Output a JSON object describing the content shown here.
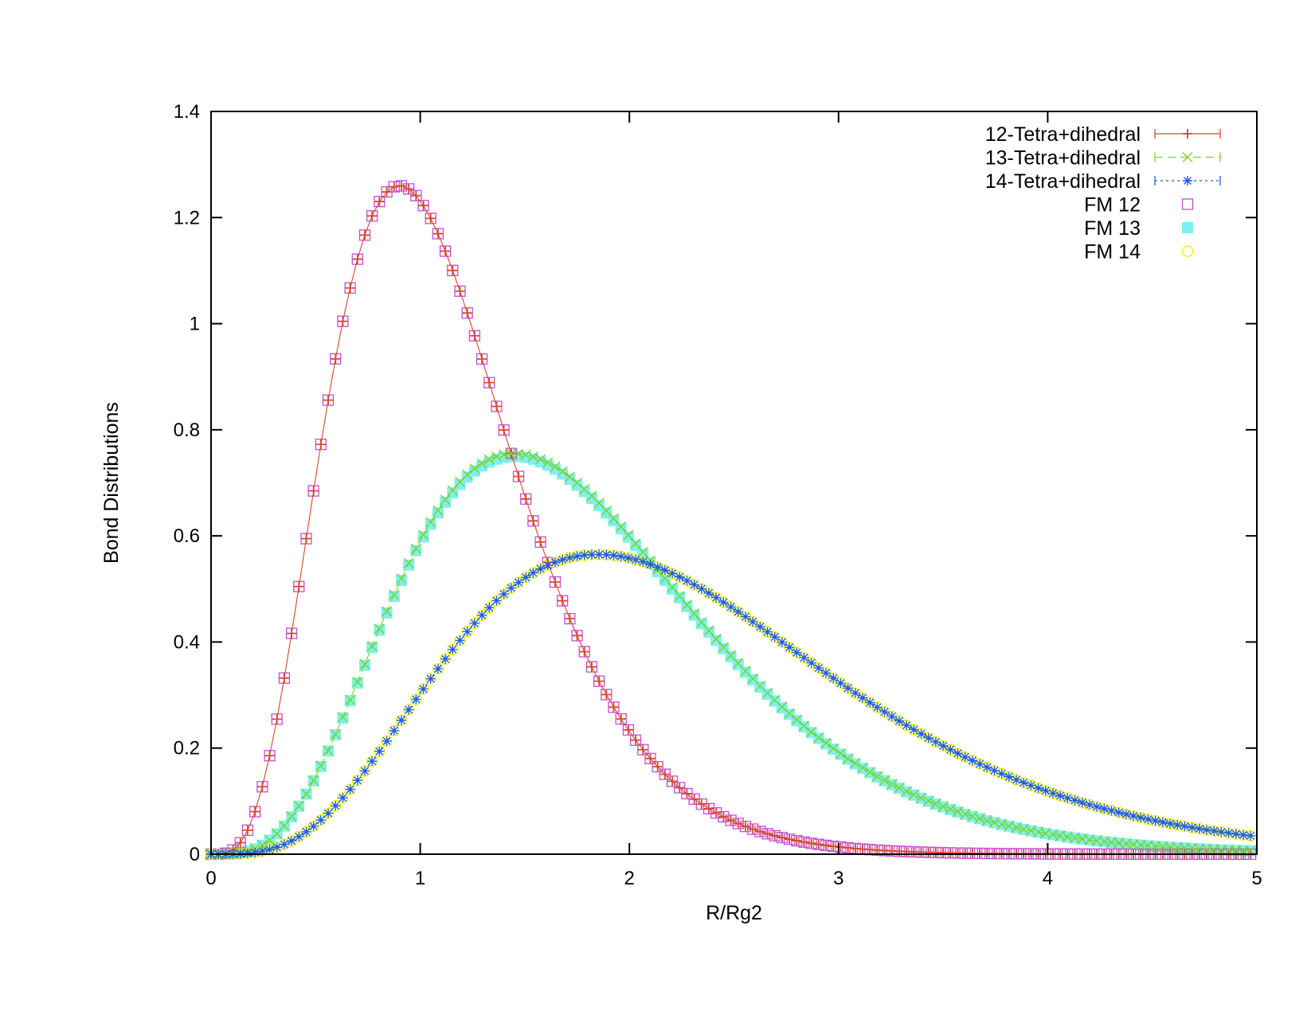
{
  "chart_data": {
    "type": "scatter",
    "title": "",
    "xlabel": "R/Rg2",
    "ylabel": "Bond Distributions",
    "xlim": [
      0,
      5
    ],
    "ylim": [
      0,
      1.4
    ],
    "xticks": [
      "0",
      "1",
      "2",
      "3",
      "4",
      "5"
    ],
    "yticks": [
      "0",
      "0.2",
      "0.4",
      "0.6",
      "0.8",
      "1",
      "1.2",
      "1.4"
    ],
    "grid": false,
    "legend_position": "top-right",
    "sample_step": 0.035,
    "series": [
      {
        "name": "12-Tetra+dihedral",
        "marker": "plus",
        "line": "solid",
        "color": "#d9452c",
        "model": {
          "peak_x": 0.9,
          "peak_y": 1.26,
          "shape": 4.0
        }
      },
      {
        "name": "13-Tetra+dihedral",
        "marker": "x",
        "line": "dashed",
        "color": "#7ed321",
        "model": {
          "peak_x": 1.45,
          "peak_y": 0.755,
          "shape": 4.0
        }
      },
      {
        "name": "14-Tetra+dihedral",
        "marker": "asterisk",
        "line": "dotted",
        "color": "#1f5fd6",
        "model": {
          "peak_x": 1.85,
          "peak_y": 0.565,
          "shape": 4.0
        }
      },
      {
        "name": "FM 12",
        "marker": "open-square",
        "line": "none",
        "color": "#c24fd6",
        "model": {
          "peak_x": 0.9,
          "peak_y": 1.26,
          "shape": 4.0
        }
      },
      {
        "name": "FM 13",
        "marker": "filled-square",
        "line": "none",
        "color": "#7ff0f0",
        "model": {
          "peak_x": 1.45,
          "peak_y": 0.75,
          "shape": 4.0
        }
      },
      {
        "name": "FM 14",
        "marker": "open-circle",
        "line": "none",
        "color": "#eeee00",
        "model": {
          "peak_x": 1.85,
          "peak_y": 0.565,
          "shape": 4.0
        }
      }
    ]
  }
}
